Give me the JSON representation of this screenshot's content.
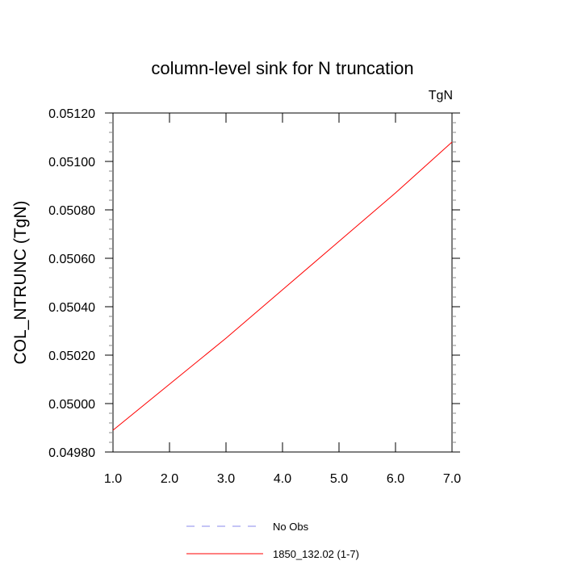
{
  "chart_data": {
    "type": "line",
    "title": "column-level sink for N truncation",
    "units_label": "TgN",
    "ylabel": "COL_NTRUNC  (TgN)",
    "xlabel": "",
    "xlim": [
      1.0,
      7.0
    ],
    "ylim": [
      0.0498,
      0.0512
    ],
    "x_ticks": [
      1.0,
      2.0,
      3.0,
      4.0,
      5.0,
      6.0,
      7.0
    ],
    "x_tick_labels": [
      "1.0",
      "2.0",
      "3.0",
      "4.0",
      "5.0",
      "6.0",
      "7.0"
    ],
    "y_ticks": [
      0.0498,
      0.05,
      0.0502,
      0.0504,
      0.0506,
      0.0508,
      0.051,
      0.0512
    ],
    "y_tick_labels": [
      "0.04980",
      "0.05000",
      "0.05020",
      "0.05040",
      "0.05060",
      "0.05080",
      "0.05100",
      "0.05120"
    ],
    "grid": false,
    "legend_position": "bottom-center",
    "series": [
      {
        "name": "No Obs",
        "color": "#8888ee",
        "style": "dashed",
        "x": [],
        "y": []
      },
      {
        "name": "1850_132.02 (1-7)",
        "color": "#ff0000",
        "style": "solid",
        "x": [
          1,
          2,
          3,
          4,
          5,
          6,
          7
        ],
        "y": [
          0.04989,
          0.05008,
          0.05027,
          0.05047,
          0.05067,
          0.05087,
          0.05108
        ]
      }
    ]
  }
}
